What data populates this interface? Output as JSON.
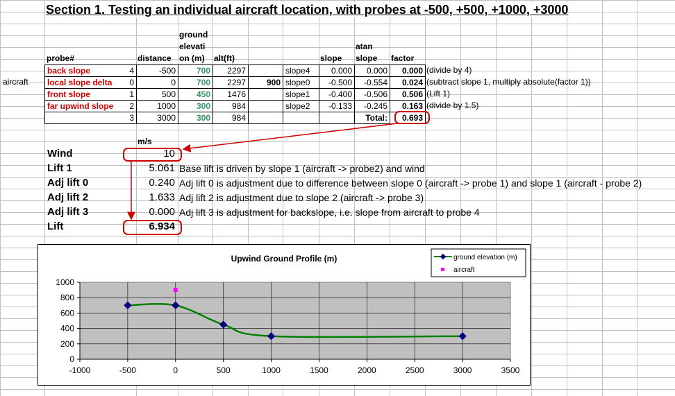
{
  "title": "Section 1. Testing an individual aircraft location, with probes at -500, +500, +1000, +3000",
  "headers": {
    "probe": "probe#",
    "distance": "distance",
    "ground_elevation": [
      "ground",
      "elevati",
      "on (m)"
    ],
    "alt": "alt(ft)",
    "slope": "slope",
    "atan_slope": [
      "atan",
      "slope"
    ],
    "factor": "factor"
  },
  "aircraft_label": "aircraft",
  "rows": [
    {
      "name": "back slope",
      "probe": "4",
      "distance": "-500",
      "elev": "700",
      "alt": "2297",
      "extra": "",
      "slope_name": "slope4",
      "slope": "0.000",
      "atan": "0.000",
      "factor": "0.000",
      "note": "(divide by 4)"
    },
    {
      "name": "local slope  delta",
      "probe": "0",
      "distance": "0",
      "elev": "700",
      "alt": "2297",
      "extra": "900",
      "slope_name": "slope0",
      "slope": "-0.500",
      "atan": "-0.554",
      "factor": "0.024",
      "note": "(subtract slope 1, multiply absolute(factor 1))"
    },
    {
      "name": "front slope",
      "probe": "1",
      "distance": "500",
      "elev": "450",
      "alt": "1476",
      "extra": "",
      "slope_name": "slope1",
      "slope": "-0.400",
      "atan": "-0.506",
      "factor": "0.506",
      "note": "(Lift 1)"
    },
    {
      "name": "far upwind slope",
      "probe": "2",
      "distance": "1000",
      "elev": "300",
      "alt": "984",
      "extra": "",
      "slope_name": "slope2",
      "slope": "-0.133",
      "atan": "-0.245",
      "factor": "0.163",
      "note": "(divide by 1.5)"
    },
    {
      "name": "",
      "probe": "3",
      "distance": "3000",
      "elev": "300",
      "alt": "984",
      "extra": "",
      "slope_name": "",
      "slope": "",
      "atan": "Total:",
      "factor": "0.693",
      "note": ""
    }
  ],
  "unit_label": "m/s",
  "lift": [
    {
      "label": "Wind",
      "value": "10",
      "desc": ""
    },
    {
      "label": "Lift 1",
      "value": "5.061",
      "desc": "Base lift is driven by slope 1 (aircraft -> probe2) and wind"
    },
    {
      "label": "Adj lift 0",
      "value": "0.240",
      "desc": "Adj lift 0 is adjustment due to difference between slope 0 (aircraft -> probe 1) and slope 1 (aircraft - probe 2)"
    },
    {
      "label": "Adj lift 2",
      "value": "1.633",
      "desc": "Adj lift 2 is adjustment due to slope 2 (aircraft -> probe 3)"
    },
    {
      "label": "Adj lift 3",
      "value": "0.000",
      "desc": "Adj lift 3 is adjustment for backslope, i.e. slope from aircraft to probe 4"
    },
    {
      "label": "Lift",
      "value": "6.934",
      "desc": ""
    }
  ],
  "colors": {
    "red": "#cc0000",
    "green": "#339966",
    "plot_bg": "#c0c0c0",
    "series_line": "#008000",
    "series_marker": "#000080",
    "aircraft_marker": "#ff00ff"
  },
  "chart_data": {
    "type": "line",
    "title": "Upwind Ground Profile (m)",
    "xlim": [
      -1000,
      3500
    ],
    "ylim": [
      0,
      1000
    ],
    "x_ticks": [
      "-1000",
      "-500",
      "0",
      "500",
      "1000",
      "1500",
      "2000",
      "2500",
      "3000",
      "3500"
    ],
    "y_ticks": [
      "0",
      "200",
      "400",
      "600",
      "800",
      "1000"
    ],
    "grid": true,
    "legend_position": "top-right",
    "series": [
      {
        "name": "ground elevation (m)",
        "x": [
          -500,
          0,
          500,
          1000,
          3000
        ],
        "y": [
          700,
          700,
          450,
          300,
          300
        ]
      },
      {
        "name": "aircraft",
        "x": [
          0
        ],
        "y": [
          900
        ]
      }
    ]
  }
}
